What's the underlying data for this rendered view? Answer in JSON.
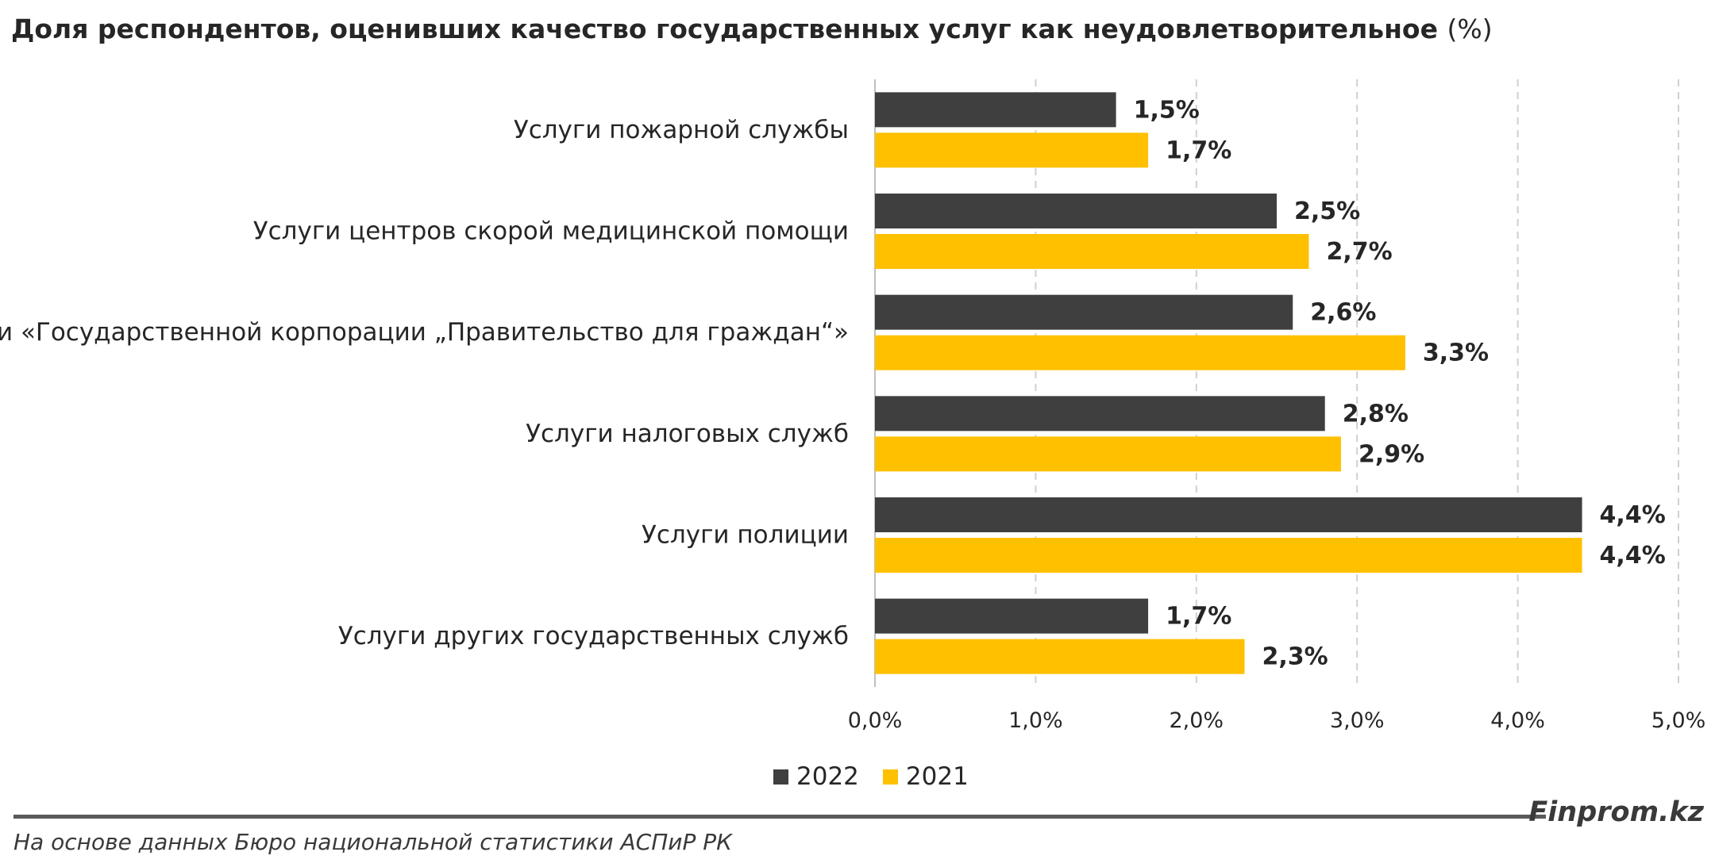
{
  "page": {
    "title": "Доля респондентов, оценивших качество государственных услуг как неудовлетворительное",
    "title_unit": "(%)",
    "brand": "Finprom.kz",
    "source": "На основе данных Бюро национальной статистики АСПиР РК"
  },
  "colors": {
    "series_2022": "#3f3f3f",
    "series_2021": "#ffc000",
    "grid": "#d0d0d0",
    "text": "#262626"
  },
  "chart_data": {
    "type": "bar",
    "orientation": "horizontal",
    "categories": [
      "Услуги пожарной службы",
      "Услуги центров скорой медицинской помощи",
      "Услуги «Государственной корпорации „Правительство для граждан“»",
      "Услуги налоговых служб",
      "Услуги полиции",
      "Услуги других государственных служб"
    ],
    "series": [
      {
        "name": "2022",
        "values": [
          1.5,
          2.5,
          2.6,
          2.8,
          4.4,
          1.7
        ],
        "labels": [
          "1,5%",
          "2,5%",
          "2,6%",
          "2,8%",
          "4,4%",
          "1,7%"
        ]
      },
      {
        "name": "2021",
        "values": [
          1.7,
          2.7,
          3.3,
          2.9,
          4.4,
          2.3
        ],
        "labels": [
          "1,7%",
          "2,7%",
          "3,3%",
          "2,9%",
          "4,4%",
          "2,3%"
        ]
      }
    ],
    "xlim": [
      0,
      5
    ],
    "xticks": [
      0,
      1,
      2,
      3,
      4,
      5
    ],
    "xtick_labels": [
      "0,0%",
      "1,0%",
      "2,0%",
      "3,0%",
      "4,0%",
      "5,0%"
    ],
    "grid": "vertical dashed",
    "legend": "bottom"
  }
}
